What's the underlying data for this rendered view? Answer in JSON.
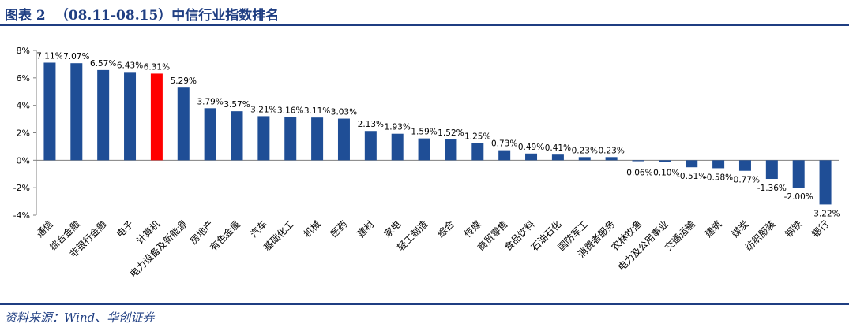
{
  "header": {
    "figure_label": "图表 2",
    "title": "（08.11-08.15）中信行业指数排名"
  },
  "footer": {
    "source": "资料来源：Wind、华创证券"
  },
  "colors": {
    "primary": "#1f4e96",
    "highlight": "#ff0000",
    "rule": "#1f3e82"
  },
  "chart_data": {
    "type": "bar",
    "categories": [
      "通信",
      "综合金融",
      "非银行金融",
      "电子",
      "计算机",
      "电力设备及新能源",
      "房地产",
      "有色金属",
      "汽车",
      "基础化工",
      "机械",
      "医药",
      "建材",
      "家电",
      "轻工制造",
      "综合",
      "传媒",
      "商贸零售",
      "食品饮料",
      "石油石化",
      "国防军工",
      "消费者服务",
      "农林牧渔",
      "电力及公用事业",
      "交通运输",
      "建筑",
      "煤炭",
      "纺织服装",
      "钢铁",
      "银行"
    ],
    "values": [
      7.11,
      7.07,
      6.57,
      6.43,
      6.31,
      5.29,
      3.79,
      3.57,
      3.21,
      3.16,
      3.11,
      3.03,
      2.13,
      1.93,
      1.59,
      1.52,
      1.25,
      0.73,
      0.49,
      0.41,
      0.23,
      0.23,
      -0.06,
      -0.1,
      -0.51,
      -0.58,
      -0.77,
      -1.36,
      -2.0,
      -3.22
    ],
    "labels": [
      "7.11%",
      "7.07%",
      "6.57%",
      "6.43%",
      "6.31%",
      "5.29%",
      "3.79%",
      "3.57%",
      "3.21%",
      "3.16%",
      "3.11%",
      "3.03%",
      "2.13%",
      "1.93%",
      "1.59%",
      "1.52%",
      "1.25%",
      "0.73%",
      "0.49%",
      "0.41%",
      "0.23%",
      "0.23%",
      "-0.06%",
      "-0.10%",
      "-0.51%",
      "-0.58%",
      "-0.77%",
      "-1.36%",
      "-2.00%",
      "-3.22%"
    ],
    "highlight": "计算机",
    "yticks": [
      "8%",
      "6%",
      "4%",
      "2%",
      "0%",
      "-2%",
      "-4%"
    ],
    "ylim": [
      -4,
      8
    ],
    "grid": false
  }
}
